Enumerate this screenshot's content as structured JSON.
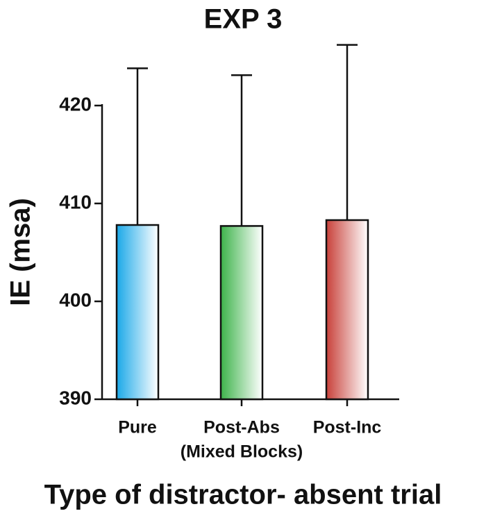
{
  "chart_data": {
    "type": "bar",
    "title": "EXP 3",
    "y_label": "IE (msa)",
    "x_label": "Type of distractor- absent trial",
    "annotation": "(Mixed Blocks)",
    "categories": [
      "Pure",
      "Post-Abs",
      "Post-Inc"
    ],
    "values": [
      407.8,
      407.7,
      408.3
    ],
    "errors": [
      16.0,
      15.4,
      17.9
    ],
    "colors": [
      "#1aa8e8",
      "#3db34a",
      "#c8413a"
    ],
    "ylim": [
      390,
      420
    ],
    "yticks": [
      390,
      400,
      410,
      420
    ]
  }
}
